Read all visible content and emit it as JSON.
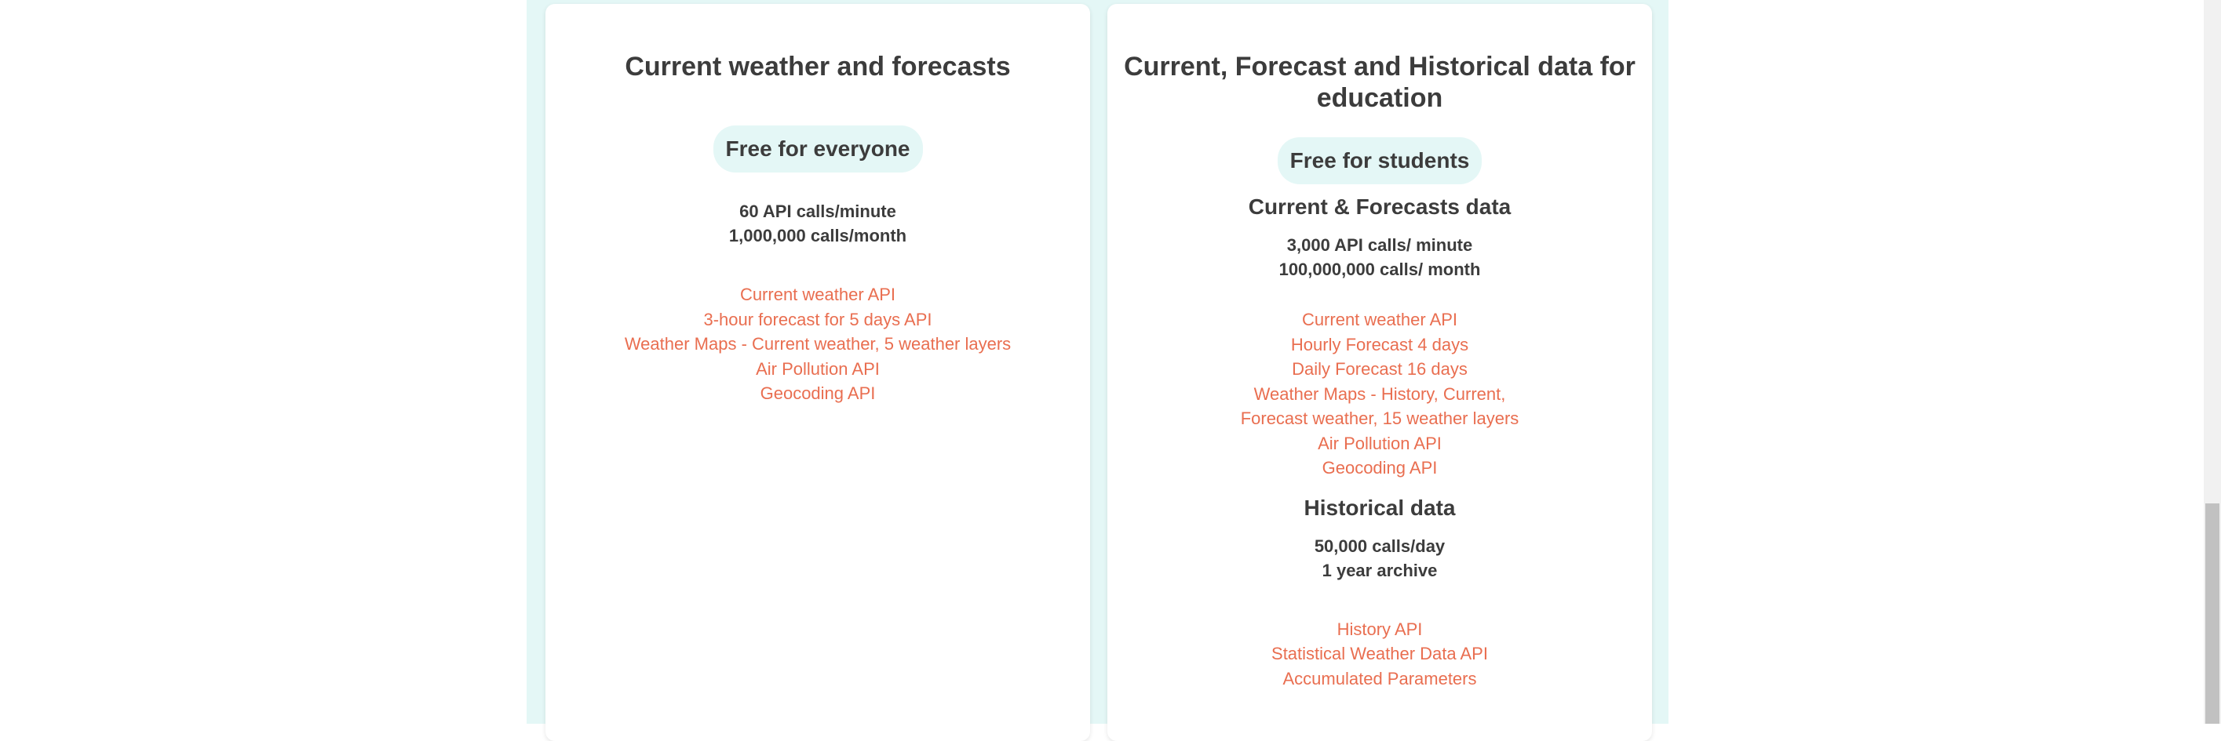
{
  "cards": [
    {
      "title": "Current weather and forecasts",
      "pill": "Free for everyone",
      "limits": [
        "60 API calls/minute",
        "1,000,000 calls/month"
      ],
      "links": [
        "Current weather API",
        "3-hour forecast for 5 days API",
        "Weather Maps - Current weather, 5 weather layers",
        "Air Pollution API",
        "Geocoding API"
      ]
    },
    {
      "title": "Current, Forecast and Historical data for education",
      "pill": "Free for students",
      "sections": [
        {
          "title": "Current & Forecasts data",
          "limits": [
            "3,000 API calls/ minute",
            "100,000,000 calls/ month"
          ],
          "links": [
            "Current weather API",
            "Hourly Forecast 4 days",
            "Daily Forecast 16 days",
            "Weather Maps - History, Current,",
            "Forecast weather, 15 weather layers",
            "Air Pollution API",
            "Geocoding API"
          ]
        },
        {
          "title": "Historical data",
          "limits": [
            "50,000 calls/day",
            "1 year archive"
          ],
          "links": [
            "History API",
            "Statistical Weather Data API",
            "Accumulated Parameters"
          ]
        }
      ]
    }
  ],
  "colors": {
    "band": "#e4f7f6",
    "pill_bg": "#e4f7f6",
    "link": "#e96e50",
    "text": "#3c3c3c"
  }
}
